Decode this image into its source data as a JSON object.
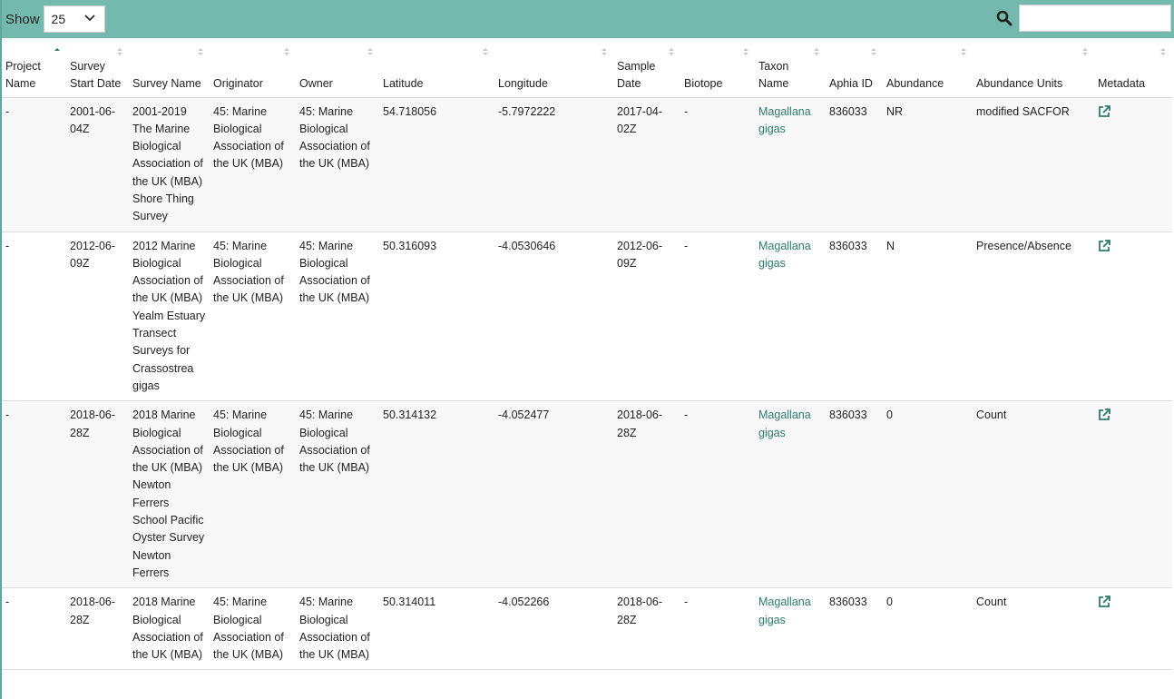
{
  "toolbar": {
    "show_label": "Show",
    "page_size": "25",
    "search_placeholder": "",
    "search_value": ""
  },
  "colors": {
    "header_bar": "#74b9ad",
    "link": "#2e7b6d",
    "row_alt": "#f8f8f8"
  },
  "columns": [
    {
      "label": "Project Name",
      "sort": "asc"
    },
    {
      "label": "Survey Start Date",
      "sort": "none"
    },
    {
      "label": "Survey Name",
      "sort": "none"
    },
    {
      "label": "Originator",
      "sort": "none"
    },
    {
      "label": "Owner",
      "sort": "none"
    },
    {
      "label": "Latitude",
      "sort": "none"
    },
    {
      "label": "Longitude",
      "sort": "none"
    },
    {
      "label": "Sample Date",
      "sort": "none"
    },
    {
      "label": "Biotope",
      "sort": "none"
    },
    {
      "label": "Taxon Name",
      "sort": "none"
    },
    {
      "label": "Aphia ID",
      "sort": "none"
    },
    {
      "label": "Abundance",
      "sort": "none"
    },
    {
      "label": "Abundance Units",
      "sort": "none"
    },
    {
      "label": "Metadata",
      "sort": "none"
    }
  ],
  "rows": [
    {
      "project": "-",
      "start": "2001-06-04Z",
      "survey": "2001-2019 The Marine Biological Association of the UK (MBA) Shore Thing Survey",
      "originator": "45: Marine Biological Association of the UK (MBA)",
      "owner": "45: Marine Biological Association of the UK (MBA)",
      "lat": "54.718056",
      "lon": "-5.7972222",
      "sample": "2017-04-02Z",
      "biotope": "-",
      "taxon": "Magallana gigas",
      "aphia": "836033",
      "abundance": "NR",
      "units": "modified SACFOR",
      "metadata_icon": "external-link-icon"
    },
    {
      "project": "-",
      "start": "2012-06-09Z",
      "survey": "2012 Marine Biological Association of the UK (MBA) Yealm Estuary Transect Surveys for Crassostrea gigas",
      "originator": "45: Marine Biological Association of the UK (MBA)",
      "owner": "45: Marine Biological Association of the UK (MBA)",
      "lat": "50.316093",
      "lon": "-4.0530646",
      "sample": "2012-06-09Z",
      "biotope": "-",
      "taxon": "Magallana gigas",
      "aphia": "836033",
      "abundance": "N",
      "units": "Presence/Absence",
      "metadata_icon": "external-link-icon"
    },
    {
      "project": "-",
      "start": "2018-06-28Z",
      "survey": "2018 Marine Biological Association of the UK (MBA) Newton Ferrers School Pacific Oyster Survey Newton Ferrers",
      "originator": "45: Marine Biological Association of the UK (MBA)",
      "owner": "45: Marine Biological Association of the UK (MBA)",
      "lat": "50.314132",
      "lon": "-4.052477",
      "sample": "2018-06-28Z",
      "biotope": "-",
      "taxon": "Magallana gigas",
      "aphia": "836033",
      "abundance": "0",
      "units": "Count",
      "metadata_icon": "external-link-icon"
    },
    {
      "project": "-",
      "start": "2018-06-28Z",
      "survey": "2018 Marine Biological Association of the UK (MBA)",
      "originator": "45: Marine Biological Association of the UK (MBA)",
      "owner": "45: Marine Biological Association of the UK (MBA)",
      "lat": "50.314011",
      "lon": "-4.052266",
      "sample": "2018-06-28Z",
      "biotope": "-",
      "taxon": "Magallana gigas",
      "aphia": "836033",
      "abundance": "0",
      "units": "Count",
      "metadata_icon": "external-link-icon"
    }
  ]
}
